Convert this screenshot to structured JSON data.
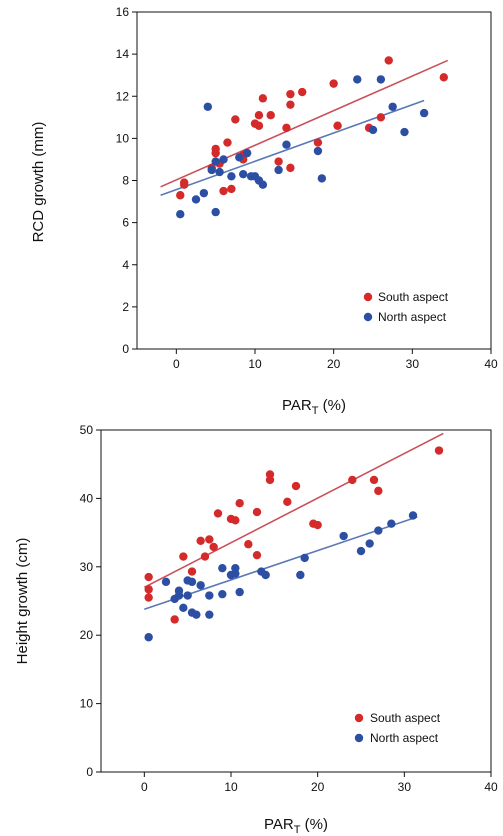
{
  "colors": {
    "south": "#d42a2a",
    "south_line": "#c9505a",
    "north": "#2c4ea3",
    "north_line": "#5a78b8"
  },
  "chart_data": [
    {
      "type": "scatter",
      "ylabel": "RCD growth (mm)",
      "xlabel_main": "PAR",
      "xlabel_sub": "T",
      "xlabel_unit": " (%)",
      "xlim": [
        -5,
        40
      ],
      "ylim": [
        0,
        16
      ],
      "xticks": [
        0,
        10,
        20,
        30,
        40
      ],
      "yticks": [
        0,
        2,
        4,
        6,
        8,
        10,
        12,
        14,
        16
      ],
      "grid": false,
      "legend_position": "bottom-right",
      "series": [
        {
          "name": "South aspect",
          "color": "#d42a2a",
          "points": [
            [
              0.5,
              7.3
            ],
            [
              1,
              7.9
            ],
            [
              1,
              7.8
            ],
            [
              4.5,
              8.6
            ],
            [
              5,
              9.3
            ],
            [
              5,
              9.5
            ],
            [
              5.5,
              8.8
            ],
            [
              6,
              7.5
            ],
            [
              6.5,
              9.8
            ],
            [
              7,
              7.6
            ],
            [
              7.5,
              10.9
            ],
            [
              8.5,
              9.0
            ],
            [
              8.5,
              9.2
            ],
            [
              10,
              10.7
            ],
            [
              10.5,
              11.1
            ],
            [
              10.5,
              10.6
            ],
            [
              11,
              11.9
            ],
            [
              12,
              11.1
            ],
            [
              13,
              8.9
            ],
            [
              14,
              10.5
            ],
            [
              14.5,
              12.1
            ],
            [
              14.5,
              11.6
            ],
            [
              14.5,
              8.6
            ],
            [
              16,
              12.2
            ],
            [
              18,
              9.8
            ],
            [
              20,
              12.6
            ],
            [
              20.5,
              10.6
            ],
            [
              24.5,
              10.5
            ],
            [
              26,
              11.0
            ],
            [
              27,
              13.7
            ],
            [
              34,
              12.9
            ]
          ],
          "trend": [
            [
              -2,
              7.7
            ],
            [
              34.5,
              13.7
            ]
          ]
        },
        {
          "name": "North aspect",
          "color": "#2c4ea3",
          "points": [
            [
              0.5,
              6.4
            ],
            [
              2.5,
              7.1
            ],
            [
              3.5,
              7.4
            ],
            [
              4,
              11.5
            ],
            [
              4.5,
              8.5
            ],
            [
              5,
              8.9
            ],
            [
              5,
              6.5
            ],
            [
              5.5,
              8.4
            ],
            [
              6,
              9.0
            ],
            [
              7,
              8.2
            ],
            [
              8,
              9.1
            ],
            [
              8.5,
              8.3
            ],
            [
              9,
              9.3
            ],
            [
              9.5,
              8.2
            ],
            [
              10,
              8.2
            ],
            [
              10.5,
              8.0
            ],
            [
              11,
              7.8
            ],
            [
              13,
              8.5
            ],
            [
              14,
              9.7
            ],
            [
              18,
              9.4
            ],
            [
              18.5,
              8.1
            ],
            [
              23,
              12.8
            ],
            [
              25,
              10.4
            ],
            [
              26,
              12.8
            ],
            [
              27.5,
              11.5
            ],
            [
              29,
              10.3
            ],
            [
              31.5,
              11.2
            ]
          ],
          "trend": [
            [
              -2,
              7.3
            ],
            [
              31.5,
              11.8
            ]
          ]
        }
      ]
    },
    {
      "type": "scatter",
      "ylabel": "Height growth (cm)",
      "xlabel_main": "PAR",
      "xlabel_sub": "T",
      "xlabel_unit": " (%)",
      "xlim": [
        -5,
        40
      ],
      "ylim": [
        0,
        50
      ],
      "xticks": [
        0,
        10,
        20,
        30,
        40
      ],
      "yticks": [
        0,
        10,
        20,
        30,
        40,
        50
      ],
      "grid": false,
      "legend_position": "bottom-right",
      "series": [
        {
          "name": "South aspect",
          "color": "#d42a2a",
          "points": [
            [
              0.5,
              25.5
            ],
            [
              0.5,
              26.7
            ],
            [
              0.5,
              28.5
            ],
            [
              3.5,
              22.3
            ],
            [
              4.5,
              31.5
            ],
            [
              5.5,
              29.3
            ],
            [
              6.5,
              33.8
            ],
            [
              7,
              31.5
            ],
            [
              7.5,
              34.0
            ],
            [
              8,
              32.9
            ],
            [
              8.5,
              37.8
            ],
            [
              10,
              37.0
            ],
            [
              10.5,
              36.8
            ],
            [
              11,
              39.3
            ],
            [
              12,
              33.3
            ],
            [
              13,
              38.0
            ],
            [
              13,
              31.7
            ],
            [
              14.5,
              43.5
            ],
            [
              14.5,
              42.7
            ],
            [
              16.5,
              39.5
            ],
            [
              17.5,
              41.8
            ],
            [
              19.5,
              36.3
            ],
            [
              20,
              36.1
            ],
            [
              24,
              42.7
            ],
            [
              26.5,
              42.7
            ],
            [
              27,
              41.1
            ],
            [
              34,
              47.0
            ]
          ],
          "trend": [
            [
              0,
              27
            ],
            [
              34.5,
              49.5
            ]
          ]
        },
        {
          "name": "North aspect",
          "color": "#2c4ea3",
          "points": [
            [
              0.5,
              19.7
            ],
            [
              2.5,
              27.8
            ],
            [
              3.5,
              25.3
            ],
            [
              4,
              25.8
            ],
            [
              4,
              26.5
            ],
            [
              4.5,
              24.0
            ],
            [
              5,
              28.0
            ],
            [
              5,
              25.8
            ],
            [
              5.5,
              23.3
            ],
            [
              5.5,
              27.8
            ],
            [
              6,
              23.0
            ],
            [
              6.5,
              27.3
            ],
            [
              7.5,
              23.0
            ],
            [
              7.5,
              25.8
            ],
            [
              9,
              26.0
            ],
            [
              9,
              29.8
            ],
            [
              10,
              28.8
            ],
            [
              10.5,
              29.8
            ],
            [
              10.5,
              29.0
            ],
            [
              11,
              26.3
            ],
            [
              13.5,
              29.3
            ],
            [
              14,
              28.8
            ],
            [
              18,
              28.8
            ],
            [
              18.5,
              31.3
            ],
            [
              23,
              34.5
            ],
            [
              25,
              32.3
            ],
            [
              26,
              33.4
            ],
            [
              27,
              35.3
            ],
            [
              28.5,
              36.3
            ],
            [
              31,
              37.5
            ]
          ],
          "trend": [
            [
              0,
              23.8
            ],
            [
              31.5,
              37.3
            ]
          ]
        }
      ]
    }
  ]
}
